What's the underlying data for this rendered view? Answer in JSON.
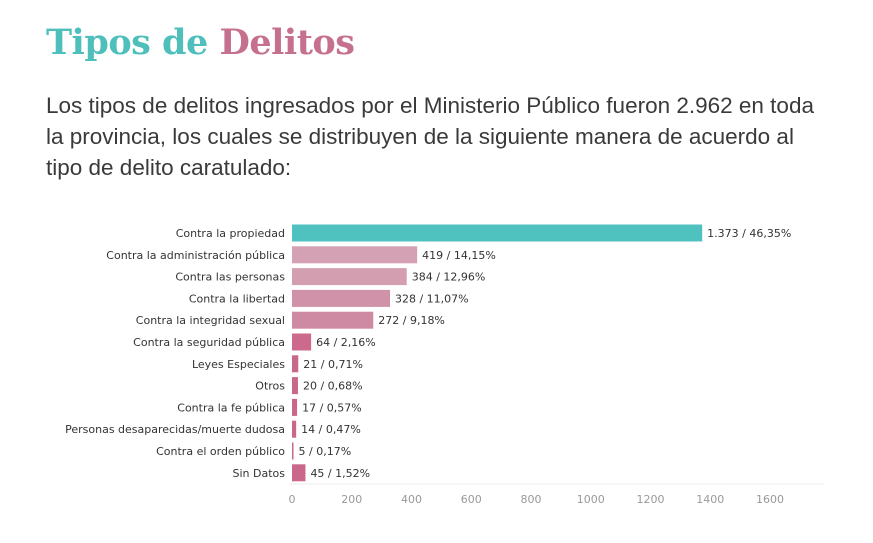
{
  "title": {
    "part1": "Tipos de",
    "part2": "Delitos",
    "color1": "#4fbfbc",
    "color2": "#c5708f"
  },
  "intro": "Los tipos de delitos ingresados por el Ministerio Público fueron 2.962 en toda la provincia, los cuales se distribuyen de la siguiente manera de acuerdo al tipo de delito caratulado:",
  "chart_data": {
    "type": "bar",
    "orientation": "horizontal",
    "categories": [
      "Contra la propiedad",
      "Contra la administración pública",
      "Contra las personas",
      "Contra la libertad",
      "Contra la integridad sexual",
      "Contra la seguridad pública",
      "Leyes Especiales",
      "Otros",
      "Contra la fe pública",
      "Personas desaparecidas/muerte dudosa",
      "Contra el orden público",
      "Sin Datos"
    ],
    "values": [
      1373,
      419,
      384,
      328,
      272,
      64,
      21,
      20,
      17,
      14,
      5,
      45
    ],
    "data_labels": [
      "1.373 / 46,35%",
      "419 / 14,15%",
      "384 / 12,96%",
      "328 / 11,07%",
      "272 / 9,18%",
      "64 / 2,16%",
      "21 / 0,71%",
      "20 / 0,68%",
      "17 / 0,57%",
      "14 / 0,47%",
      "5 / 0,17%",
      "45 / 1,52%"
    ],
    "bar_colors": [
      "#4fc2bf",
      "#d3a1b3",
      "#d29eb0",
      "#d092a9",
      "#cf8aa3",
      "#cb6a8c",
      "#c9688a",
      "#c9688a",
      "#c9688a",
      "#c9688a",
      "#c9688a",
      "#c9688a"
    ],
    "xticks": [
      0,
      200,
      400,
      600,
      800,
      1000,
      1200,
      1400,
      1600
    ],
    "xlim": [
      0,
      1780
    ],
    "grid": false
  }
}
